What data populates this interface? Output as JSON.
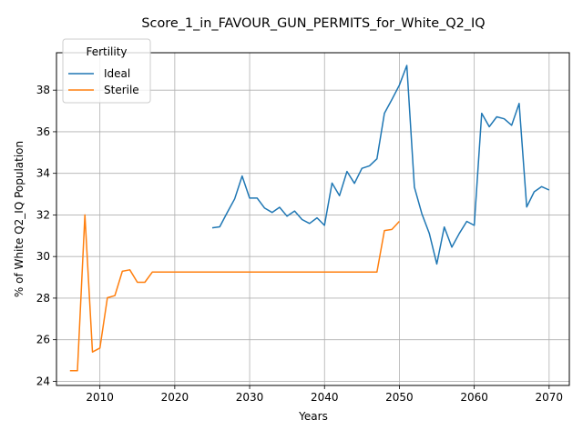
{
  "chart_data": {
    "type": "line",
    "title": "Score_1_in_FAVOUR_GUN_PERMITS_for_White_Q2_IQ",
    "xlabel": "Years",
    "ylabel": "% of White Q2_IQ Population",
    "xlim": [
      2004.2,
      2072.7
    ],
    "ylim": [
      23.8,
      39.8
    ],
    "xticks": [
      2010,
      2020,
      2030,
      2040,
      2050,
      2060,
      2070
    ],
    "yticks": [
      24,
      26,
      28,
      30,
      32,
      34,
      36,
      38
    ],
    "grid": true,
    "legend": {
      "title": "Fertility",
      "placement": "top-left"
    },
    "series": [
      {
        "name": "Ideal",
        "color": "#1f77b4",
        "x": [
          2025,
          2026,
          2027,
          2028,
          2029,
          2030,
          2031,
          2032,
          2033,
          2034,
          2035,
          2036,
          2037,
          2038,
          2039,
          2040,
          2041,
          2042,
          2043,
          2044,
          2045,
          2046,
          2047,
          2048,
          2049,
          2050,
          2051,
          2052,
          2053,
          2054,
          2055,
          2056,
          2057,
          2058,
          2059,
          2060,
          2061,
          2062,
          2063,
          2064,
          2065,
          2066,
          2067,
          2068,
          2069,
          2070
        ],
        "values": [
          31.38,
          31.43,
          32.11,
          32.77,
          33.87,
          32.81,
          32.81,
          32.33,
          32.12,
          32.37,
          31.94,
          32.19,
          31.78,
          31.59,
          31.86,
          31.5,
          33.53,
          32.93,
          34.09,
          33.52,
          34.24,
          34.36,
          34.7,
          36.89,
          37.55,
          38.24,
          39.19,
          33.34,
          32.06,
          31.11,
          29.64,
          31.42,
          30.45,
          31.11,
          31.69,
          31.5,
          36.89,
          36.24,
          36.72,
          36.62,
          36.31,
          37.36,
          32.38,
          33.11,
          33.36,
          33.2
        ]
      },
      {
        "name": "Sterile",
        "color": "#ff7f0e",
        "x": [
          2006,
          2007,
          2008,
          2009,
          2010,
          2011,
          2012,
          2013,
          2014,
          2015,
          2016,
          2017,
          2018,
          2019,
          2020,
          2021,
          2022,
          2023,
          2024,
          2025,
          2026,
          2027,
          2028,
          2029,
          2030,
          2031,
          2032,
          2033,
          2034,
          2035,
          2036,
          2037,
          2038,
          2039,
          2040,
          2041,
          2042,
          2043,
          2044,
          2045,
          2046,
          2047,
          2048,
          2049,
          2050
        ],
        "values": [
          24.51,
          24.51,
          32.0,
          25.41,
          25.6,
          28.02,
          28.12,
          29.29,
          29.36,
          28.76,
          28.76,
          29.25,
          29.25,
          29.25,
          29.25,
          29.25,
          29.25,
          29.25,
          29.25,
          29.25,
          29.25,
          29.25,
          29.25,
          29.25,
          29.25,
          29.25,
          29.25,
          29.25,
          29.25,
          29.25,
          29.25,
          29.25,
          29.25,
          29.25,
          29.25,
          29.25,
          29.25,
          29.25,
          29.25,
          29.25,
          29.25,
          29.25,
          31.25,
          31.3,
          31.69
        ]
      }
    ]
  }
}
